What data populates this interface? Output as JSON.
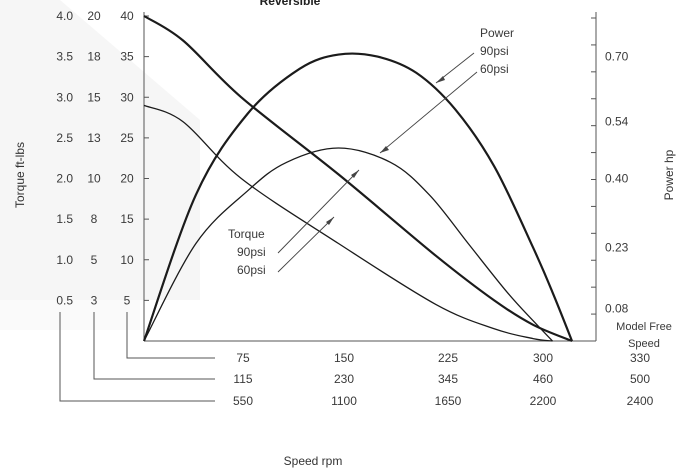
{
  "chart_data": {
    "type": "line",
    "title": "Reversible",
    "xlabel": "Speed rpm",
    "ylabel_left": "Torque ft-lbs",
    "ylabel_right": "Power hp",
    "torque_scale_1": [
      "0.5",
      "1.0",
      "1.5",
      "2.0",
      "2.5",
      "3.0",
      "3.5",
      "4.0"
    ],
    "torque_scale_2": [
      "3",
      "5",
      "8",
      "10",
      "13",
      "15",
      "18",
      "20"
    ],
    "torque_scale_3": [
      "5",
      "10",
      "15",
      "20",
      "25",
      "30",
      "35",
      "40"
    ],
    "power_ticks": [
      "0.08",
      "0.23",
      "0.40",
      "0.54",
      "0.70"
    ],
    "speed_row_1": [
      "75",
      "150",
      "225",
      "300",
      "330"
    ],
    "speed_row_2": [
      "115",
      "230",
      "345",
      "460",
      "500"
    ],
    "speed_row_3": [
      "550",
      "1100",
      "1650",
      "2200",
      "2400"
    ],
    "model_free_speed_label": [
      "Model Free",
      "Speed"
    ],
    "xlim": [
      0,
      330
    ],
    "ylim": [
      0,
      40
    ],
    "series": [
      {
        "name": "Torque 90psi",
        "kind": "torque",
        "x": [
          0,
          30,
          75,
          150,
          225,
          270,
          300,
          330
        ],
        "y": [
          40,
          37,
          30,
          20.5,
          10.5,
          5,
          2,
          0
        ]
      },
      {
        "name": "Torque 60psi",
        "kind": "torque",
        "x": [
          0,
          30,
          75,
          150,
          225,
          270,
          300,
          315
        ],
        "y": [
          29,
          27,
          20,
          12,
          4.5,
          1.5,
          0.3,
          0
        ]
      },
      {
        "name": "Power 90psi",
        "kind": "power",
        "x": [
          0,
          40,
          80,
          120,
          150,
          180,
          210,
          240,
          270,
          300,
          315,
          330
        ],
        "y": [
          0,
          0.36,
          0.56,
          0.67,
          0.705,
          0.7,
          0.66,
          0.57,
          0.43,
          0.23,
          0.12,
          0
        ]
      },
      {
        "name": "Power 60psi",
        "kind": "power",
        "x": [
          0,
          40,
          80,
          110,
          150,
          190,
          220,
          250,
          280,
          300,
          315
        ],
        "y": [
          0,
          0.24,
          0.37,
          0.44,
          0.475,
          0.44,
          0.36,
          0.24,
          0.12,
          0.05,
          0
        ]
      }
    ],
    "annotations": {
      "power_label": "Power",
      "power_90": "90psi",
      "power_60": "60psi",
      "torque_label": "Torque",
      "torque_90": "90psi",
      "torque_60": "60psi"
    }
  }
}
